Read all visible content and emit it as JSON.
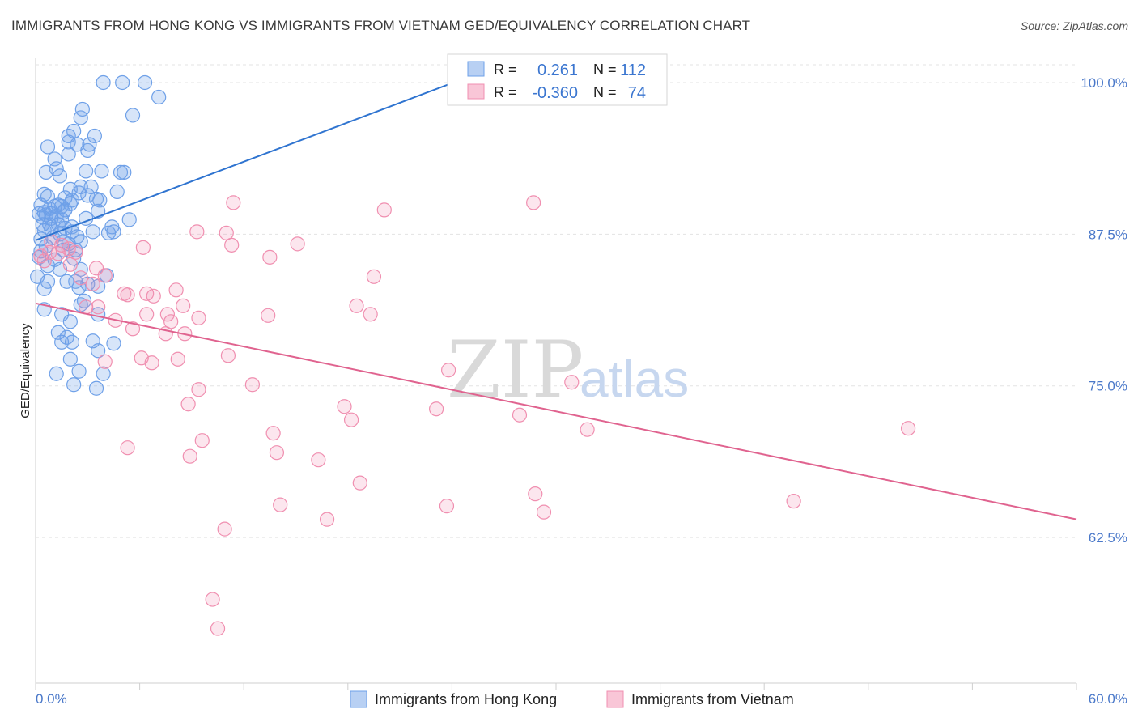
{
  "title": "IMMIGRANTS FROM HONG KONG VS IMMIGRANTS FROM VIETNAM GED/EQUIVALENCY CORRELATION CHART",
  "source": "Source: ZipAtlas.com",
  "watermark": {
    "part1": "ZIP",
    "part2": "atlas"
  },
  "legend_top": {
    "rows": [
      {
        "r_label": "R =",
        "r_value": "0.261",
        "n_label": "N =",
        "n_value": "112",
        "color": "#6ea0e8"
      },
      {
        "r_label": "R =",
        "r_value": "-0.360",
        "n_label": "N =",
        "n_value": "74",
        "color": "#f08fb0"
      }
    ]
  },
  "legend_bottom": {
    "items": [
      {
        "label": "Immigrants from Hong Kong",
        "color": "#6ea0e8"
      },
      {
        "label": "Immigrants from Vietnam",
        "color": "#f08fb0"
      }
    ]
  },
  "chart_data": {
    "type": "scatter",
    "xlabel": "",
    "ylabel": "GED/Equivalency",
    "xlim": [
      0,
      60
    ],
    "ylim": [
      50.5,
      102
    ],
    "x_tick_labels": [
      "0.0%",
      "60.0%"
    ],
    "y_ticks": [
      62.5,
      75.0,
      87.5,
      100.0
    ],
    "y_tick_labels": [
      "62.5%",
      "75.0%",
      "87.5%",
      "100.0%"
    ],
    "grid": true,
    "series": [
      {
        "name": "Immigrants from Hong Kong",
        "color": "#6ea0e8",
        "trend": {
          "x": [
            0,
            26.5
          ],
          "y": [
            87.0,
            101.3
          ]
        },
        "points": [
          [
            3.9,
            100
          ],
          [
            5.0,
            100
          ],
          [
            6.3,
            100
          ],
          [
            7.1,
            98.8
          ],
          [
            5.6,
            97.3
          ],
          [
            2.7,
            97.8
          ],
          [
            2.6,
            97.1
          ],
          [
            2.2,
            96.0
          ],
          [
            3.4,
            95.6
          ],
          [
            1.9,
            95.6
          ],
          [
            0.7,
            94.7
          ],
          [
            1.9,
            95.1
          ],
          [
            2.4,
            94.9
          ],
          [
            3.1,
            94.9
          ],
          [
            3.0,
            94.4
          ],
          [
            1.9,
            94.1
          ],
          [
            1.1,
            93.7
          ],
          [
            1.2,
            92.9
          ],
          [
            2.9,
            92.7
          ],
          [
            3.8,
            92.7
          ],
          [
            4.9,
            92.6
          ],
          [
            5.1,
            92.6
          ],
          [
            0.6,
            92.6
          ],
          [
            1.4,
            92.3
          ],
          [
            2.6,
            91.4
          ],
          [
            3.2,
            91.4
          ],
          [
            0.5,
            90.8
          ],
          [
            2.5,
            90.9
          ],
          [
            4.7,
            91.0
          ],
          [
            2.0,
            91.2
          ],
          [
            0.7,
            90.6
          ],
          [
            1.7,
            90.5
          ],
          [
            2.1,
            90.3
          ],
          [
            3.5,
            90.4
          ],
          [
            3.7,
            90.3
          ],
          [
            0.3,
            89.9
          ],
          [
            0.8,
            89.6
          ],
          [
            1.1,
            89.8
          ],
          [
            1.3,
            89.9
          ],
          [
            1.5,
            89.8
          ],
          [
            2.0,
            90.0
          ],
          [
            0.2,
            89.2
          ],
          [
            0.6,
            89.1
          ],
          [
            0.9,
            89.2
          ],
          [
            1.6,
            89.3
          ],
          [
            3.6,
            89.4
          ],
          [
            0.4,
            88.9
          ],
          [
            0.5,
            89.3
          ],
          [
            1.2,
            89.0
          ],
          [
            1.5,
            88.7
          ],
          [
            2.9,
            88.8
          ],
          [
            5.4,
            88.7
          ],
          [
            0.4,
            88.3
          ],
          [
            0.8,
            88.3
          ],
          [
            1.3,
            88.3
          ],
          [
            1.7,
            88.0
          ],
          [
            2.1,
            88.1
          ],
          [
            4.4,
            88.1
          ],
          [
            0.5,
            87.8
          ],
          [
            0.9,
            87.9
          ],
          [
            1.4,
            87.5
          ],
          [
            2.1,
            87.7
          ],
          [
            3.3,
            87.7
          ],
          [
            4.5,
            87.7
          ],
          [
            4.2,
            87.6
          ],
          [
            1.0,
            87.2
          ],
          [
            1.6,
            86.9
          ],
          [
            2.6,
            86.9
          ],
          [
            0.3,
            86.1
          ],
          [
            1.6,
            86.2
          ],
          [
            2.3,
            86.2
          ],
          [
            0.2,
            85.6
          ],
          [
            1.1,
            85.4
          ],
          [
            2.2,
            85.5
          ],
          [
            0.7,
            84.9
          ],
          [
            1.4,
            84.6
          ],
          [
            2.6,
            84.6
          ],
          [
            0.1,
            84.0
          ],
          [
            4.1,
            84.1
          ],
          [
            0.7,
            83.6
          ],
          [
            1.8,
            83.6
          ],
          [
            2.3,
            83.6
          ],
          [
            2.5,
            83.1
          ],
          [
            3.0,
            83.4
          ],
          [
            3.6,
            83.2
          ],
          [
            0.5,
            83.0
          ],
          [
            2.8,
            82.0
          ],
          [
            0.5,
            81.3
          ],
          [
            2.6,
            81.7
          ],
          [
            3.6,
            80.9
          ],
          [
            1.5,
            80.9
          ],
          [
            2.0,
            80.3
          ],
          [
            1.3,
            79.4
          ],
          [
            1.8,
            79.0
          ],
          [
            1.5,
            78.6
          ],
          [
            2.1,
            78.6
          ],
          [
            3.3,
            78.7
          ],
          [
            4.5,
            78.5
          ],
          [
            3.6,
            77.9
          ],
          [
            2.0,
            77.2
          ],
          [
            1.2,
            76.0
          ],
          [
            2.5,
            76.2
          ],
          [
            3.9,
            76.0
          ],
          [
            2.2,
            75.1
          ],
          [
            3.5,
            74.8
          ],
          [
            0.3,
            87.1
          ],
          [
            0.6,
            86.5
          ],
          [
            1.9,
            86.7
          ],
          [
            2.4,
            87.3
          ],
          [
            0.9,
            88.8
          ],
          [
            1.7,
            89.5
          ],
          [
            3.0,
            90.7
          ]
        ]
      },
      {
        "name": "Immigrants from Vietnam",
        "color": "#f08fb0",
        "trend": {
          "x": [
            0,
            60
          ],
          "y": [
            81.8,
            64.0
          ]
        },
        "points": [
          [
            0.3,
            85.7
          ],
          [
            0.8,
            86.0
          ],
          [
            1.3,
            85.9
          ],
          [
            1.9,
            86.3
          ],
          [
            2.3,
            86.0
          ],
          [
            0.9,
            86.9
          ],
          [
            1.5,
            86.6
          ],
          [
            0.5,
            85.3
          ],
          [
            3.5,
            84.7
          ],
          [
            4.0,
            84.1
          ],
          [
            2.6,
            83.9
          ],
          [
            3.3,
            83.4
          ],
          [
            5.1,
            82.6
          ],
          [
            5.3,
            82.5
          ],
          [
            6.4,
            82.6
          ],
          [
            6.8,
            82.4
          ],
          [
            8.1,
            82.9
          ],
          [
            8.5,
            81.6
          ],
          [
            2.9,
            81.5
          ],
          [
            3.6,
            81.5
          ],
          [
            6.4,
            80.9
          ],
          [
            7.6,
            80.9
          ],
          [
            7.8,
            80.3
          ],
          [
            9.4,
            80.6
          ],
          [
            4.6,
            80.4
          ],
          [
            5.6,
            79.7
          ],
          [
            7.5,
            79.3
          ],
          [
            8.6,
            79.3
          ],
          [
            4.0,
            77.0
          ],
          [
            6.1,
            77.3
          ],
          [
            6.7,
            76.9
          ],
          [
            8.2,
            77.2
          ],
          [
            11.1,
            77.5
          ],
          [
            12.5,
            75.1
          ],
          [
            9.4,
            74.7
          ],
          [
            8.8,
            73.5
          ],
          [
            17.8,
            73.3
          ],
          [
            18.2,
            72.2
          ],
          [
            23.1,
            73.1
          ],
          [
            27.9,
            72.6
          ],
          [
            23.8,
            76.3
          ],
          [
            30.9,
            75.3
          ],
          [
            31.8,
            71.4
          ],
          [
            50.3,
            71.5
          ],
          [
            9.6,
            70.5
          ],
          [
            13.7,
            71.1
          ],
          [
            5.3,
            69.9
          ],
          [
            8.9,
            69.2
          ],
          [
            13.9,
            69.5
          ],
          [
            16.3,
            68.9
          ],
          [
            18.7,
            67.0
          ],
          [
            14.1,
            65.2
          ],
          [
            23.7,
            65.1
          ],
          [
            28.8,
            66.1
          ],
          [
            29.3,
            64.6
          ],
          [
            16.8,
            64.0
          ],
          [
            10.9,
            63.2
          ],
          [
            43.7,
            65.5
          ],
          [
            10.2,
            57.4
          ],
          [
            10.5,
            55.0
          ],
          [
            11.4,
            90.1
          ],
          [
            20.1,
            89.5
          ],
          [
            28.7,
            90.1
          ],
          [
            9.3,
            87.7
          ],
          [
            11.0,
            87.6
          ],
          [
            11.3,
            86.6
          ],
          [
            15.1,
            86.7
          ],
          [
            13.5,
            85.6
          ],
          [
            19.5,
            84.0
          ],
          [
            18.5,
            81.6
          ],
          [
            19.3,
            80.9
          ],
          [
            13.4,
            80.8
          ],
          [
            6.2,
            86.4
          ],
          [
            2.0,
            85.0
          ]
        ]
      }
    ]
  }
}
